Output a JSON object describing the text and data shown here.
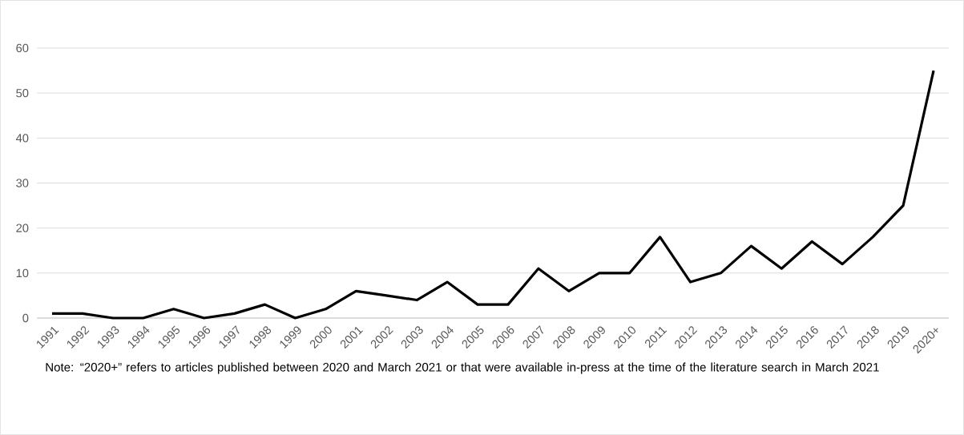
{
  "chart_data": {
    "type": "line",
    "categories": [
      "1991",
      "1992",
      "1993",
      "1994",
      "1995",
      "1996",
      "1997",
      "1998",
      "1999",
      "2000",
      "2001",
      "2002",
      "2003",
      "2004",
      "2005",
      "2006",
      "2007",
      "2008",
      "2009",
      "2010",
      "2011",
      "2012",
      "2013",
      "2014",
      "2015",
      "2016",
      "2017",
      "2018",
      "2019",
      "2020+"
    ],
    "values": [
      1,
      1,
      0,
      0,
      2,
      0,
      1,
      3,
      0,
      2,
      6,
      5,
      4,
      8,
      3,
      3,
      11,
      6,
      10,
      10,
      18,
      8,
      10,
      16,
      11,
      17,
      12,
      18,
      25,
      55
    ],
    "color": "#000000",
    "ylim": [
      0,
      60
    ],
    "yticks": [
      0,
      10,
      20,
      30,
      40,
      50,
      60
    ],
    "grid": "y",
    "annotations": [
      "Note: “2020+” refers to articles published between 2020 and March 2021 or that were available in-press at the time of the literature search in March 2021"
    ]
  }
}
